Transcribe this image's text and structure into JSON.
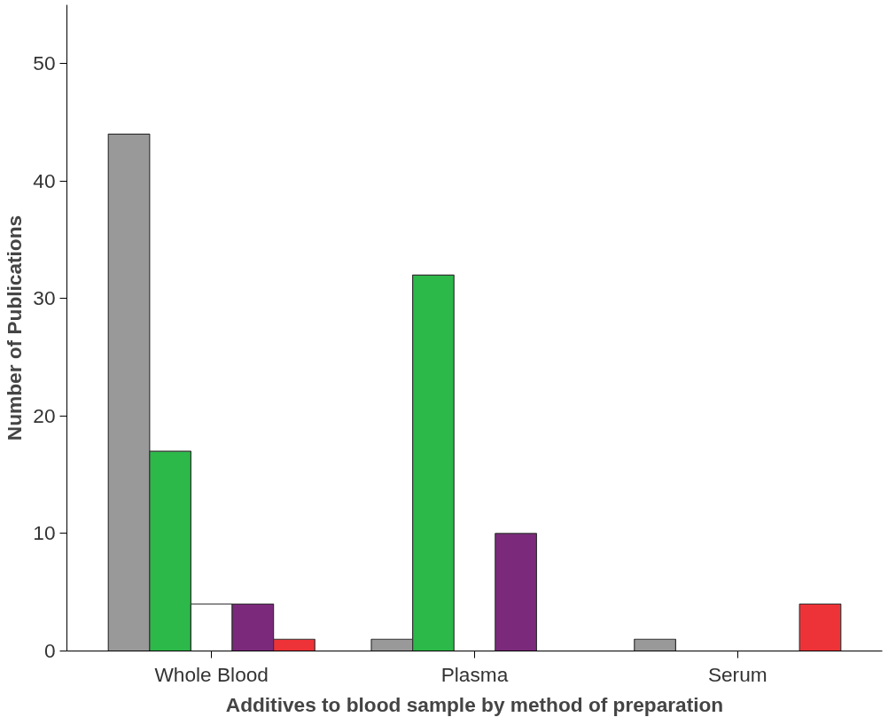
{
  "chart_data": {
    "type": "bar",
    "xlabel": "Additives to blood sample by method of preparation",
    "ylabel": "Number of Publications",
    "categories": [
      "Whole Blood",
      "Plasma",
      "Serum"
    ],
    "series": [
      {
        "color": "#999999",
        "values": [
          44,
          1,
          1
        ]
      },
      {
        "color": "#2db84a",
        "values": [
          17,
          32,
          null
        ]
      },
      {
        "color": "#ffffff",
        "values": [
          4,
          null,
          null
        ]
      },
      {
        "color": "#7b2a7b",
        "values": [
          4,
          10,
          null
        ]
      },
      {
        "color": "#ee3338",
        "values": [
          1,
          null,
          4
        ]
      }
    ],
    "ylim": [
      0,
      55
    ],
    "yticks": [
      0,
      10,
      20,
      30,
      40,
      50
    ],
    "grid": false
  }
}
